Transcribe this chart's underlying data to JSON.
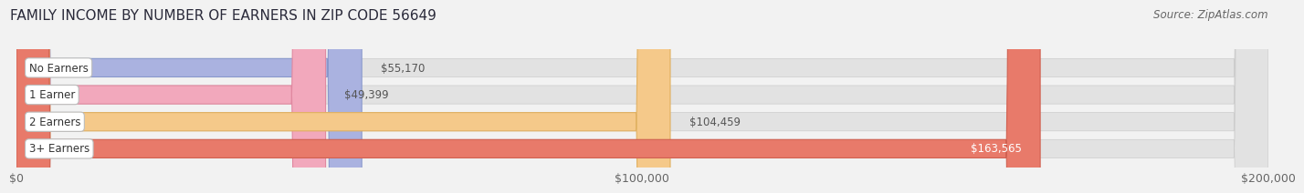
{
  "title": "FAMILY INCOME BY NUMBER OF EARNERS IN ZIP CODE 56649",
  "source": "Source: ZipAtlas.com",
  "categories": [
    "No Earners",
    "1 Earner",
    "2 Earners",
    "3+ Earners"
  ],
  "values": [
    55170,
    49399,
    104459,
    163565
  ],
  "value_labels": [
    "$55,170",
    "$49,399",
    "$104,459",
    "$163,565"
  ],
  "bar_colors": [
    "#aab2e0",
    "#f2a8bc",
    "#f5c98a",
    "#e87a6a"
  ],
  "bar_edge_colors": [
    "#8898cc",
    "#e088a0",
    "#e0b060",
    "#d06050"
  ],
  "bg_color": "#f2f2f2",
  "bar_bg_color": "#e2e2e2",
  "xlim": [
    0,
    200000
  ],
  "xticks": [
    0,
    100000,
    200000
  ],
  "xtick_labels": [
    "$0",
    "$100,000",
    "$200,000"
  ],
  "title_fontsize": 11,
  "source_fontsize": 8.5,
  "label_fontsize": 8.5,
  "value_fontsize": 8.5,
  "tick_fontsize": 9
}
